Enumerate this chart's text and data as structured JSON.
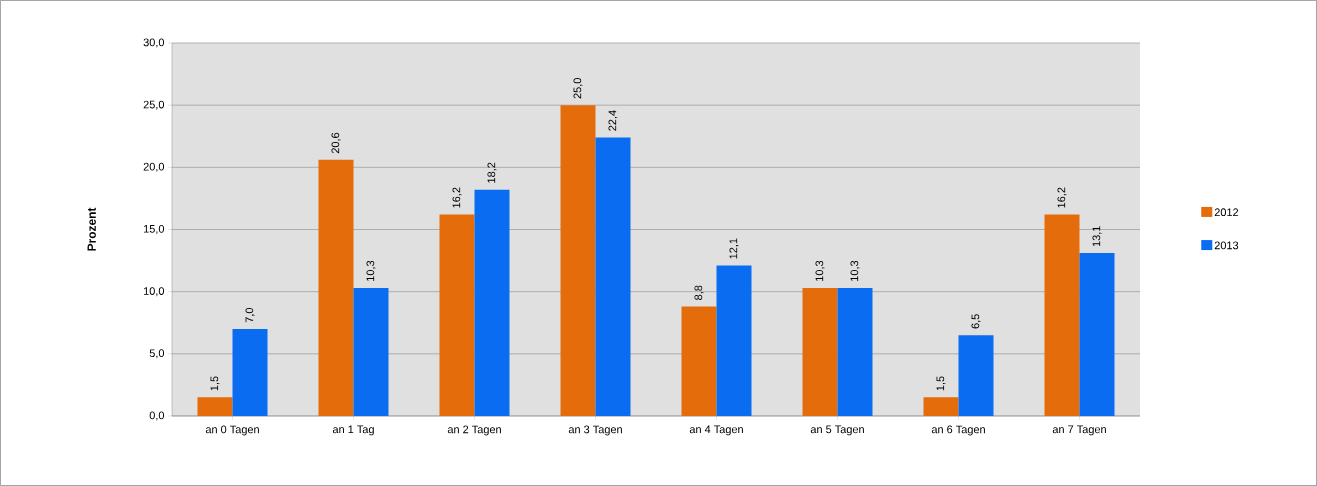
{
  "chart_data": {
    "type": "bar",
    "ylabel": "Prozent",
    "categories": [
      "an 0 Tagen",
      "an 1 Tag",
      "an 2 Tagen",
      "an 3 Tagen",
      "an 4 Tagen",
      "an 5 Tagen",
      "an 6 Tagen",
      "an 7 Tagen"
    ],
    "series": [
      {
        "name": "2012",
        "color": "#e46c0a",
        "values": [
          1.5,
          20.6,
          16.2,
          25.0,
          8.8,
          10.3,
          1.5,
          16.2
        ],
        "value_labels": [
          "1,5",
          "20,6",
          "16,2",
          "25,0",
          "8,8",
          "10,3",
          "1,5",
          "16,2"
        ]
      },
      {
        "name": "2013",
        "color": "#0a6cf0",
        "values": [
          7.0,
          10.3,
          18.2,
          22.4,
          12.1,
          10.3,
          6.5,
          13.1
        ],
        "value_labels": [
          "7,0",
          "10,3",
          "18,2",
          "22,4",
          "12,1",
          "10,3",
          "6,5",
          "13,1"
        ]
      }
    ],
    "ylim": [
      0,
      30
    ],
    "yticks": [
      {
        "value": 0,
        "label": "0,0"
      },
      {
        "value": 5,
        "label": "5,0"
      },
      {
        "value": 10,
        "label": "10,0"
      },
      {
        "value": 15,
        "label": "15,0"
      },
      {
        "value": 20,
        "label": "20,0"
      },
      {
        "value": 25,
        "label": "25,0"
      },
      {
        "value": 30,
        "label": "30,0"
      }
    ],
    "grid": "y",
    "legend": "right"
  }
}
